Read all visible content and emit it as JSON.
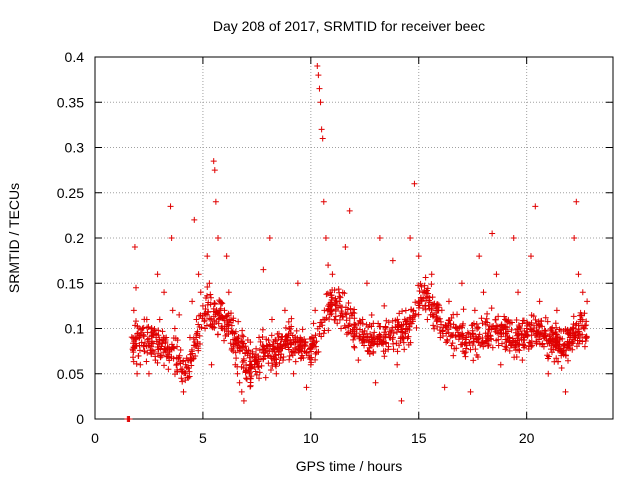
{
  "chart_data": {
    "type": "scatter",
    "title": "Day 208 of 2017, SRMTID for receiver beec",
    "xlabel": "GPS time / hours",
    "ylabel": "SRMTID / TECUs",
    "xlim": [
      0,
      24
    ],
    "ylim": [
      0,
      0.4
    ],
    "xticks": [
      0,
      5,
      10,
      15,
      20
    ],
    "yticks": [
      0,
      0.05,
      0.1,
      0.15,
      0.2,
      0.25,
      0.3,
      0.35,
      0.4
    ],
    "xtick_labels": [
      "0",
      "5",
      "10",
      "15",
      "20"
    ],
    "ytick_labels": [
      "0",
      "0.05",
      "0.1",
      "0.15",
      "0.2",
      "0.25",
      "0.3",
      "0.35",
      "0.4"
    ],
    "grid": true,
    "marker": "plus",
    "color": "#e00000",
    "data_range_x": [
      1.5,
      22.8
    ],
    "series": [
      {
        "name": "SRMTID",
        "points": [
          [
            1.5,
            0.0
          ],
          [
            1.55,
            0.0
          ],
          [
            1.6,
            0.0
          ],
          [
            1.8,
            0.12
          ],
          [
            1.85,
            0.19
          ],
          [
            1.9,
            0.145
          ],
          [
            1.95,
            0.05
          ],
          [
            2.0,
            0.09
          ],
          [
            2.1,
            0.06
          ],
          [
            2.2,
            0.1
          ],
          [
            2.3,
            0.075
          ],
          [
            2.4,
            0.11
          ],
          [
            2.5,
            0.05
          ],
          [
            2.6,
            0.08
          ],
          [
            2.7,
            0.095
          ],
          [
            2.8,
            0.065
          ],
          [
            2.9,
            0.16
          ],
          [
            3.0,
            0.11
          ],
          [
            3.1,
            0.07
          ],
          [
            3.2,
            0.14
          ],
          [
            3.3,
            0.09
          ],
          [
            3.4,
            0.055
          ],
          [
            3.5,
            0.235
          ],
          [
            3.55,
            0.2
          ],
          [
            3.6,
            0.12
          ],
          [
            3.7,
            0.1
          ],
          [
            3.8,
            0.08
          ],
          [
            3.9,
            0.115
          ],
          [
            4.0,
            0.045
          ],
          [
            4.1,
            0.03
          ],
          [
            4.2,
            0.06
          ],
          [
            4.3,
            0.065
          ],
          [
            4.4,
            0.09
          ],
          [
            4.5,
            0.13
          ],
          [
            4.6,
            0.22
          ],
          [
            4.7,
            0.11
          ],
          [
            4.8,
            0.16
          ],
          [
            4.9,
            0.14
          ],
          [
            5.0,
            0.125
          ],
          [
            5.1,
            0.1
          ],
          [
            5.2,
            0.18
          ],
          [
            5.3,
            0.15
          ],
          [
            5.4,
            0.06
          ],
          [
            5.5,
            0.285
          ],
          [
            5.55,
            0.275
          ],
          [
            5.6,
            0.24
          ],
          [
            5.7,
            0.2
          ],
          [
            5.8,
            0.13
          ],
          [
            5.9,
            0.1
          ],
          [
            6.0,
            0.12
          ],
          [
            6.1,
            0.18
          ],
          [
            6.2,
            0.14
          ],
          [
            6.3,
            0.11
          ],
          [
            6.4,
            0.075
          ],
          [
            6.5,
            0.06
          ],
          [
            6.6,
            0.05
          ],
          [
            6.7,
            0.04
          ],
          [
            6.8,
            0.03
          ],
          [
            6.9,
            0.02
          ],
          [
            7.0,
            0.045
          ],
          [
            7.2,
            0.085
          ],
          [
            7.4,
            0.06
          ],
          [
            7.6,
            0.09
          ],
          [
            7.8,
            0.165
          ],
          [
            8.0,
            0.07
          ],
          [
            8.1,
            0.2
          ],
          [
            8.2,
            0.11
          ],
          [
            8.4,
            0.05
          ],
          [
            8.6,
            0.08
          ],
          [
            8.8,
            0.12
          ],
          [
            9.0,
            0.1
          ],
          [
            9.2,
            0.05
          ],
          [
            9.4,
            0.15
          ],
          [
            9.6,
            0.07
          ],
          [
            9.8,
            0.035
          ],
          [
            10.0,
            0.06
          ],
          [
            10.2,
            0.12
          ],
          [
            10.3,
            0.39
          ],
          [
            10.35,
            0.38
          ],
          [
            10.4,
            0.365
          ],
          [
            10.45,
            0.35
          ],
          [
            10.5,
            0.32
          ],
          [
            10.55,
            0.31
          ],
          [
            10.6,
            0.24
          ],
          [
            10.7,
            0.2
          ],
          [
            10.8,
            0.17
          ],
          [
            10.9,
            0.14
          ],
          [
            11.0,
            0.16
          ],
          [
            11.2,
            0.13
          ],
          [
            11.4,
            0.1
          ],
          [
            11.6,
            0.19
          ],
          [
            11.8,
            0.23
          ],
          [
            12.0,
            0.08
          ],
          [
            12.2,
            0.065
          ],
          [
            12.4,
            0.11
          ],
          [
            12.6,
            0.15
          ],
          [
            12.8,
            0.09
          ],
          [
            13.0,
            0.04
          ],
          [
            13.2,
            0.2
          ],
          [
            13.4,
            0.125
          ],
          [
            13.6,
            0.08
          ],
          [
            13.8,
            0.175
          ],
          [
            14.0,
            0.06
          ],
          [
            14.2,
            0.02
          ],
          [
            14.4,
            0.1
          ],
          [
            14.6,
            0.2
          ],
          [
            14.8,
            0.26
          ],
          [
            15.0,
            0.18
          ],
          [
            15.2,
            0.14
          ],
          [
            15.4,
            0.11
          ],
          [
            15.6,
            0.16
          ],
          [
            15.8,
            0.12
          ],
          [
            16.0,
            0.09
          ],
          [
            16.2,
            0.035
          ],
          [
            16.4,
            0.13
          ],
          [
            16.6,
            0.07
          ],
          [
            16.8,
            0.1
          ],
          [
            17.0,
            0.15
          ],
          [
            17.2,
            0.09
          ],
          [
            17.4,
            0.03
          ],
          [
            17.6,
            0.12
          ],
          [
            17.8,
            0.18
          ],
          [
            18.0,
            0.14
          ],
          [
            18.2,
            0.095
          ],
          [
            18.4,
            0.205
          ],
          [
            18.6,
            0.16
          ],
          [
            18.8,
            0.06
          ],
          [
            19.0,
            0.11
          ],
          [
            19.2,
            0.09
          ],
          [
            19.4,
            0.2
          ],
          [
            19.6,
            0.14
          ],
          [
            19.8,
            0.065
          ],
          [
            20.0,
            0.1
          ],
          [
            20.2,
            0.18
          ],
          [
            20.4,
            0.235
          ],
          [
            20.6,
            0.13
          ],
          [
            20.8,
            0.08
          ],
          [
            21.0,
            0.05
          ],
          [
            21.2,
            0.095
          ],
          [
            21.4,
            0.12
          ],
          [
            21.6,
            0.07
          ],
          [
            21.8,
            0.03
          ],
          [
            22.0,
            0.09
          ],
          [
            22.2,
            0.2
          ],
          [
            22.3,
            0.24
          ],
          [
            22.4,
            0.16
          ],
          [
            22.5,
            0.11
          ],
          [
            22.6,
            0.14
          ],
          [
            22.7,
            0.08
          ],
          [
            22.8,
            0.13
          ]
        ]
      }
    ]
  }
}
